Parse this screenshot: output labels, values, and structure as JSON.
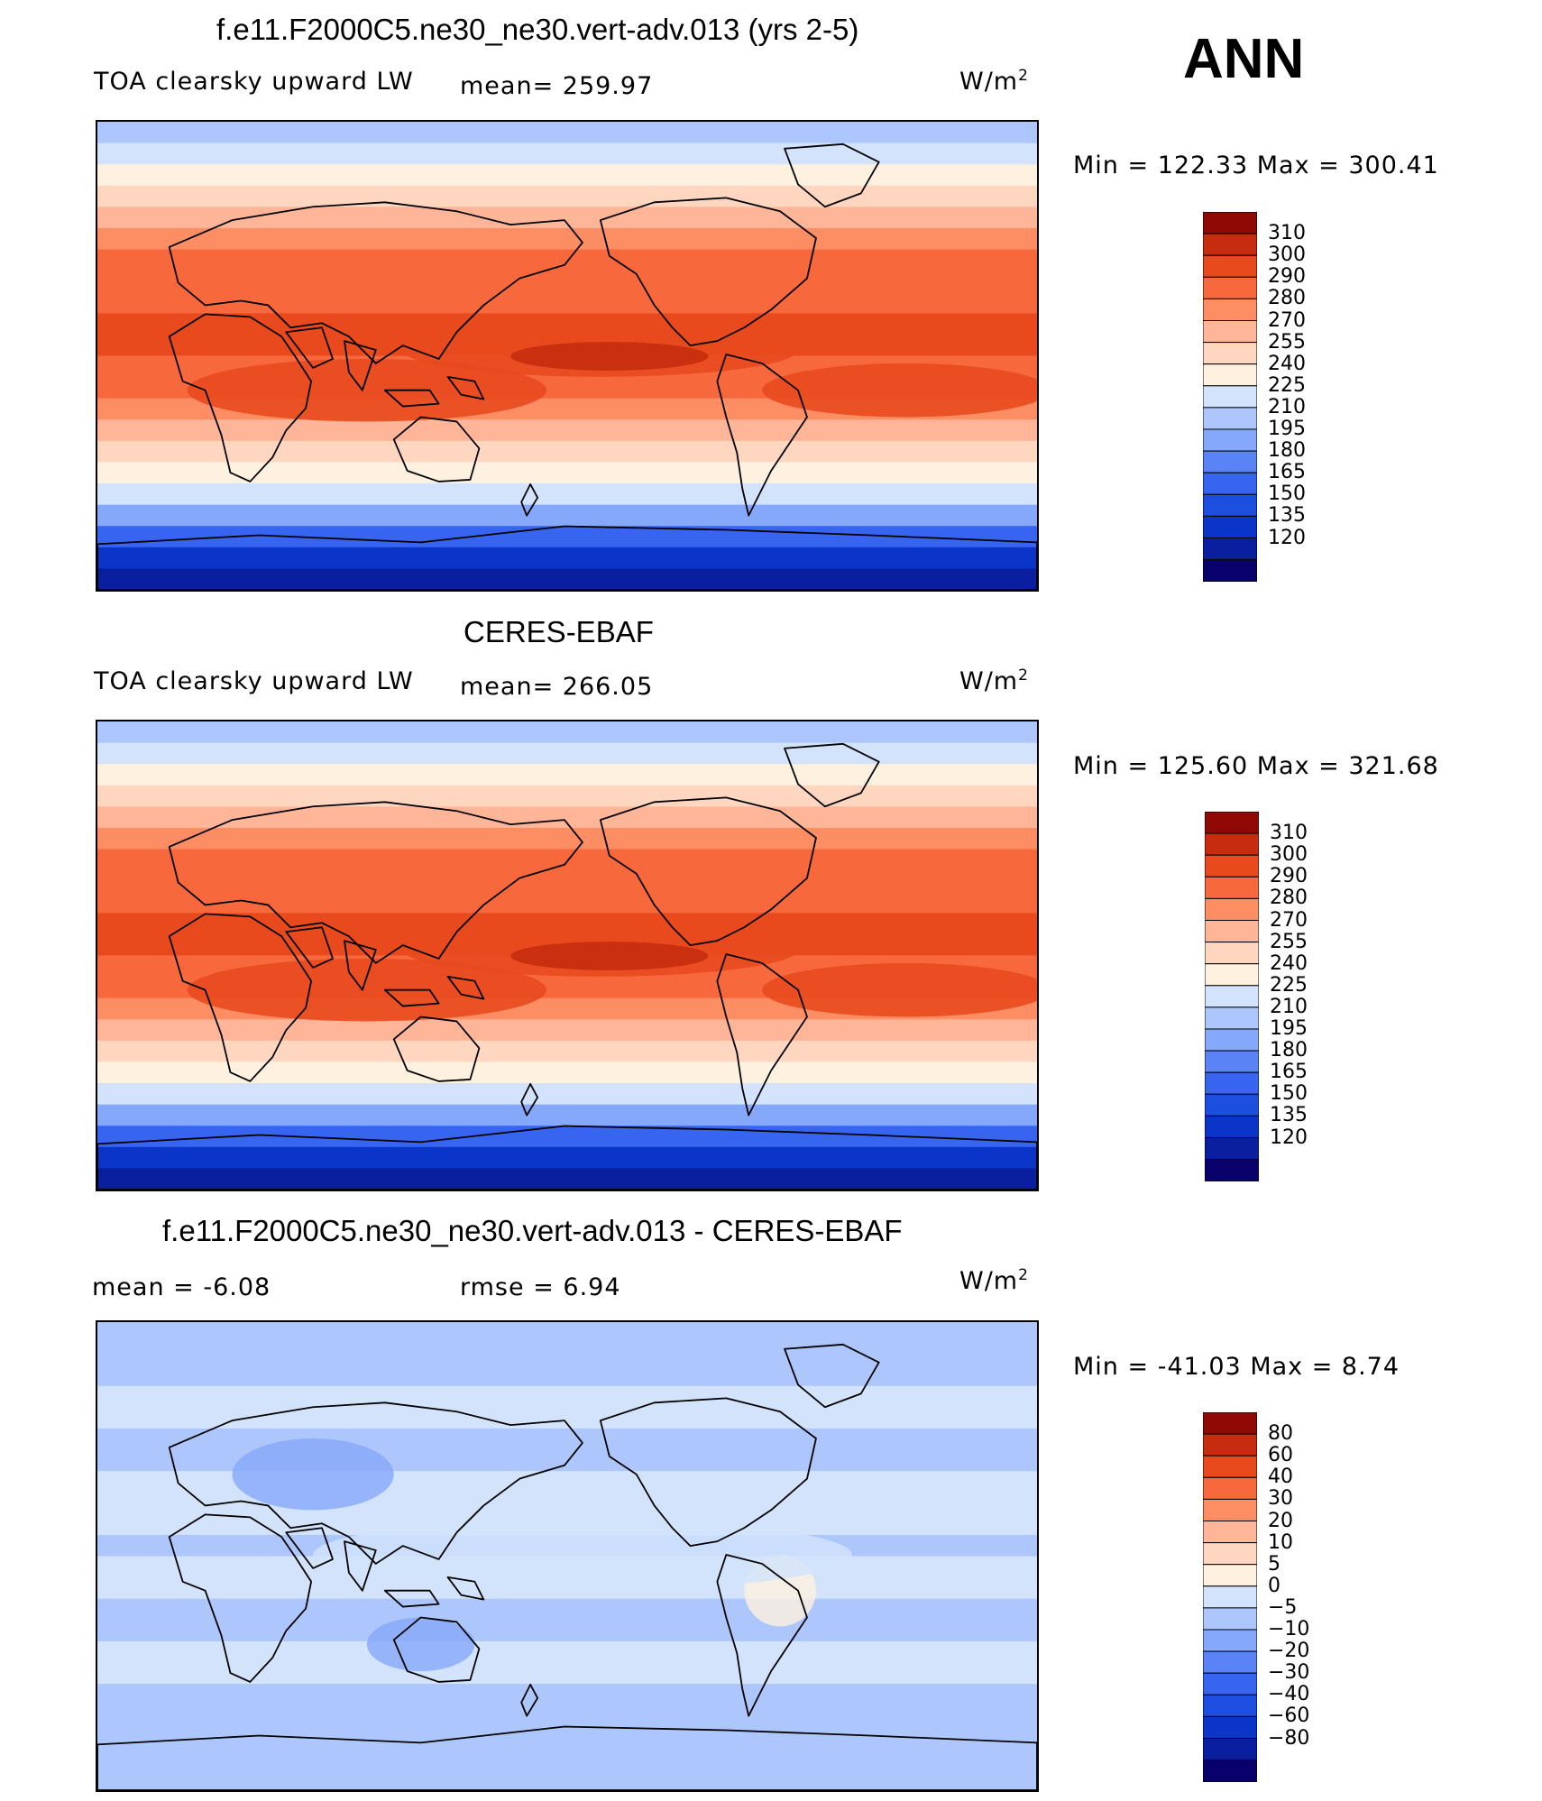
{
  "season": "ANN",
  "panels": [
    {
      "title": "f.e11.F2000C5.ne30_ne30.vert-adv.013 (yrs 2-5)",
      "left_label": "TOA clearsky upward LW",
      "center_label": "mean= 259.97",
      "units": "W/m",
      "units_exp": "2",
      "minmax": "Min  =  122.33  Max  =  300.41",
      "scheme": "abs",
      "palette": [
        "#08006b",
        "#0a1ea0",
        "#0b35c8",
        "#1c4ee0",
        "#3865f0",
        "#5a83f6",
        "#86a8fa",
        "#adc6fb",
        "#d2e3fb",
        "#fff1e0",
        "#ffd7c0",
        "#feb598",
        "#fd8e64",
        "#f7693d",
        "#e84a1e",
        "#c72c0e",
        "#8f0a05"
      ],
      "ticks": [
        "310",
        "300",
        "290",
        "280",
        "270",
        "255",
        "240",
        "225",
        "210",
        "195",
        "180",
        "165",
        "150",
        "135",
        "120"
      ]
    },
    {
      "title": "CERES-EBAF",
      "left_label": "TOA clearsky upward LW",
      "center_label": "mean= 266.05",
      "units": "W/m",
      "units_exp": "2",
      "minmax": "Min  =  125.60  Max  =  321.68",
      "scheme": "abs",
      "palette": [
        "#08006b",
        "#0a1ea0",
        "#0b35c8",
        "#1c4ee0",
        "#3865f0",
        "#5a83f6",
        "#86a8fa",
        "#adc6fb",
        "#d2e3fb",
        "#fff1e0",
        "#ffd7c0",
        "#feb598",
        "#fd8e64",
        "#f7693d",
        "#e84a1e",
        "#c72c0e",
        "#8f0a05"
      ],
      "ticks": [
        "310",
        "300",
        "290",
        "280",
        "270",
        "255",
        "240",
        "225",
        "210",
        "195",
        "180",
        "165",
        "150",
        "135",
        "120"
      ]
    },
    {
      "title": "f.e11.F2000C5.ne30_ne30.vert-adv.013 - CERES-EBAF",
      "left_label": "mean =    -6.08",
      "center_label": "rmse =     6.94",
      "units": "W/m",
      "units_exp": "2",
      "minmax": "Min  =  -41.03  Max  =     8.74",
      "scheme": "diff",
      "palette": [
        "#08006b",
        "#0a1ea0",
        "#0b35c8",
        "#1c4ee0",
        "#3865f0",
        "#5a83f6",
        "#86a8fa",
        "#adc6fb",
        "#d2e3fb",
        "#fff1e0",
        "#ffd7c0",
        "#feb598",
        "#fd8e64",
        "#f7693d",
        "#e84a1e",
        "#c72c0e",
        "#8f0a05"
      ],
      "ticks": [
        "80",
        "60",
        "40",
        "30",
        "20",
        "10",
        "5",
        "0",
        "-5",
        "-10",
        "-20",
        "-30",
        "-40",
        "-60",
        "-80"
      ]
    }
  ]
}
